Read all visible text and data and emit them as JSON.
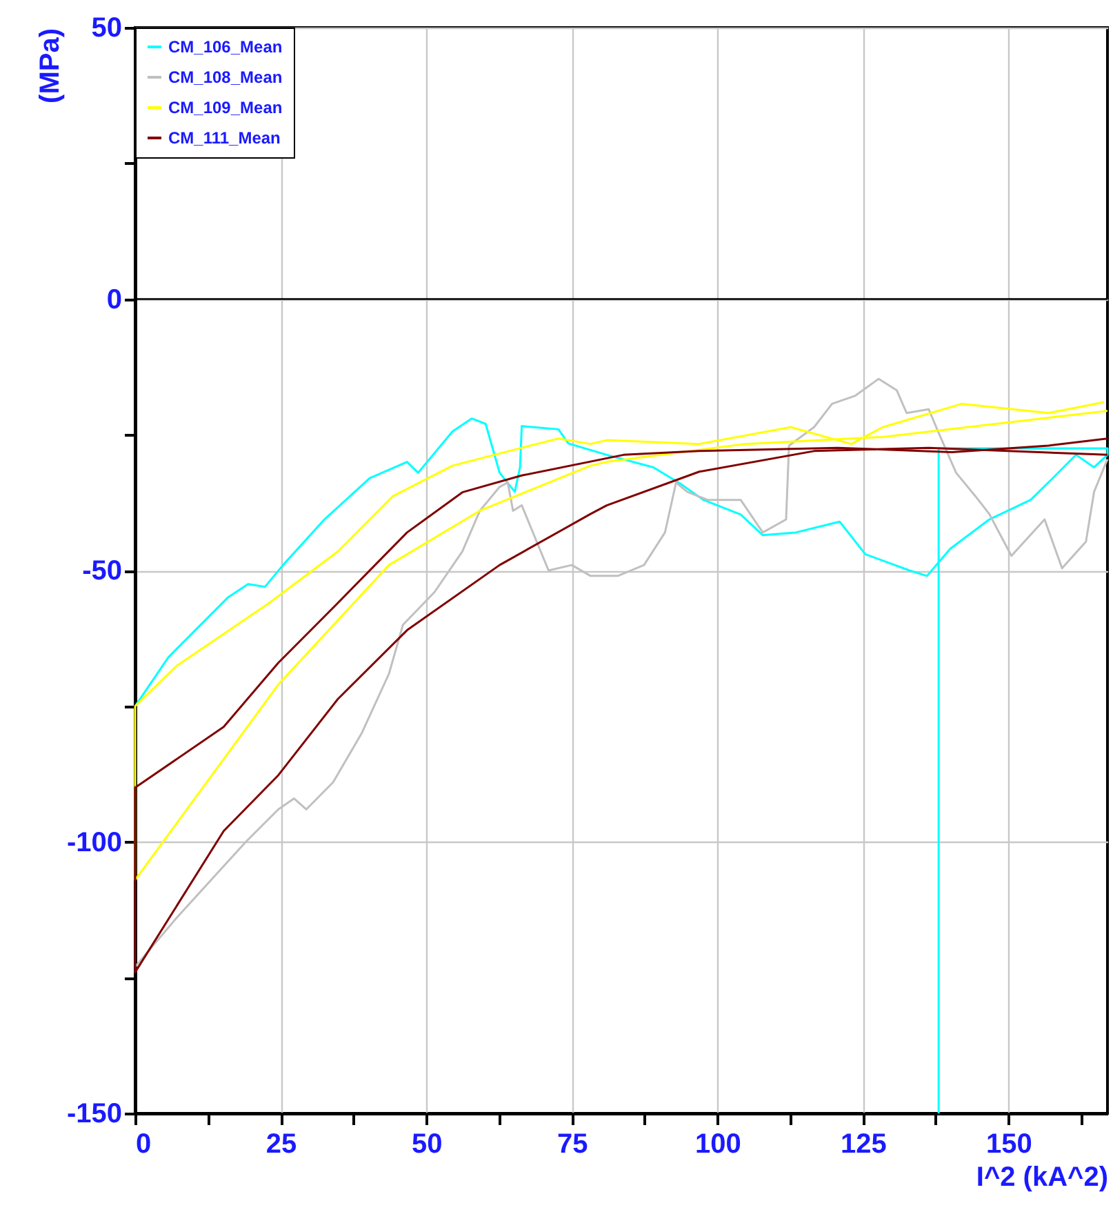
{
  "chart_data": {
    "type": "line",
    "xlabel": "I^2 (kA^2)",
    "ylabel": "(MPa)",
    "xlim": [
      0,
      167
    ],
    "ylim": [
      -150,
      50
    ],
    "xticks": [
      0,
      {
        "value": 12.5,
        "label": null
      },
      25,
      {
        "value": 37.5,
        "label": null
      },
      50,
      {
        "value": 62.5,
        "label": null
      },
      75,
      {
        "value": 87.5,
        "label": null
      },
      100,
      {
        "value": 112.5,
        "label": null
      },
      125,
      {
        "value": 137.5,
        "label": null
      },
      150,
      {
        "value": 162.5,
        "label": null
      }
    ],
    "yticks": [
      -150,
      {
        "value": -125,
        "label": null
      },
      -100,
      {
        "value": -75,
        "label": null
      },
      -50,
      {
        "value": -25,
        "label": null
      },
      0,
      {
        "value": 25,
        "label": null
      },
      50
    ],
    "grid": true,
    "legend": "top left",
    "marker": "none",
    "line_style": "solid",
    "ref_lines": [
      {
        "axis": "y",
        "value": 0,
        "label": null,
        "color": "#000000"
      }
    ],
    "series": [
      {
        "name": "CM_106_Mean",
        "color": "#00ffff",
        "x": [
          0,
          5.7,
          15.9,
          19.4,
          22.3,
          25.4,
          32.5,
          40.3,
          46.7,
          48.6,
          54.5,
          57.8,
          60.2,
          62.6,
          65.2,
          66.1,
          66.4,
          72.7,
          74.4,
          81,
          89,
          93.6,
          97.6,
          104,
          107.8,
          113.5,
          121,
          125.4,
          133,
          136,
          140,
          146.7,
          153.8,
          157.6,
          161.6,
          164.7,
          167,
          167,
          138,
          138
        ],
        "values": [
          -75,
          -66,
          -55,
          -52.5,
          -53,
          -49,
          -40.6,
          -33,
          -30,
          -32,
          -24.4,
          -22,
          -23,
          -32,
          -35.5,
          -31,
          -23.4,
          -24,
          -26.6,
          -28.7,
          -31,
          -34,
          -37,
          -39.7,
          -43.5,
          -43,
          -41,
          -47,
          -50,
          -51,
          -46,
          -40.6,
          -37,
          -33,
          -28.7,
          -31,
          -28.7,
          -27.5,
          -27.5,
          -150
        ]
      },
      {
        "name": "CM_108_Mean",
        "color": "#c0c0c0",
        "x": [
          0,
          7.1,
          19,
          24.6,
          27.3,
          29.4,
          34,
          38.9,
          43.6,
          46,
          51.4,
          56.2,
          59.2,
          62.6,
          64,
          64.9,
          66.4,
          68.7,
          71,
          75,
          78.2,
          82.9,
          87.4,
          91,
          92.9,
          94.8,
          98.3,
          104,
          107.8,
          111.8,
          112.3,
          116.6,
          119.7,
          123.7,
          127.7,
          130.8,
          132.5,
          136.3,
          137.9,
          141,
          144.3,
          146.7,
          150.5,
          156.2,
          159.2,
          163.3,
          164.7,
          167
        ],
        "values": [
          -123,
          -114,
          -100,
          -94,
          -92,
          -94,
          -89,
          -80,
          -69,
          -60,
          -54,
          -46.5,
          -39,
          -34.6,
          -33.8,
          -39,
          -38,
          -44,
          -50,
          -49,
          -51,
          -51,
          -49,
          -43,
          -33.8,
          -35.5,
          -37,
          -37,
          -43,
          -40.6,
          -27,
          -23.6,
          -19.3,
          -17.8,
          -14.7,
          -16.8,
          -21,
          -20.3,
          -24.4,
          -32,
          -36.3,
          -39.6,
          -47.3,
          -40.6,
          -49.6,
          -44.7,
          -35.5,
          -29.5
        ]
      },
      {
        "name": "CM_109_Mean",
        "color": "#ffff00",
        "x": [
          166.4,
          156.9,
          142,
          128.4,
          123,
          112.6,
          96.9,
          81,
          78.2,
          72.7,
          66.4,
          54.5,
          44.3,
          34.8,
          23,
          7.1,
          0,
          0,
          24.6,
          43.6,
          59.2,
          78.2,
          81,
          104.7,
          128.4,
          167
        ],
        "values": [
          -19,
          -21,
          -19.3,
          -23.6,
          -26.7,
          -23.6,
          -26.7,
          -26,
          -26.7,
          -25.7,
          -27.4,
          -30.7,
          -36.3,
          -46.5,
          -56,
          -67.6,
          -75,
          -107,
          -71,
          -49,
          -39,
          -30.7,
          -30,
          -26.7,
          -25.4,
          -20.6
        ]
      },
      {
        "name": "CM_111_Mean",
        "color": "#800000",
        "x": [
          167,
          156.9,
          140.3,
          120.6,
          96.9,
          83.9,
          66.4,
          56.2,
          46.7,
          34.8,
          24.6,
          15.2,
          0,
          0,
          15.2,
          24.6,
          34.8,
          46.7,
          62.6,
          78.2,
          81,
          96.9,
          116.6,
          136.3,
          167
        ],
        "values": [
          -25.7,
          -27,
          -28.2,
          -27.4,
          -28,
          -28.7,
          -32.5,
          -35.6,
          -43,
          -56,
          -67,
          -78.8,
          -90,
          -124,
          -98,
          -87.7,
          -73.7,
          -61,
          -49,
          -39.6,
          -38,
          -31.8,
          -28,
          -27.4,
          -28.7
        ]
      }
    ]
  }
}
